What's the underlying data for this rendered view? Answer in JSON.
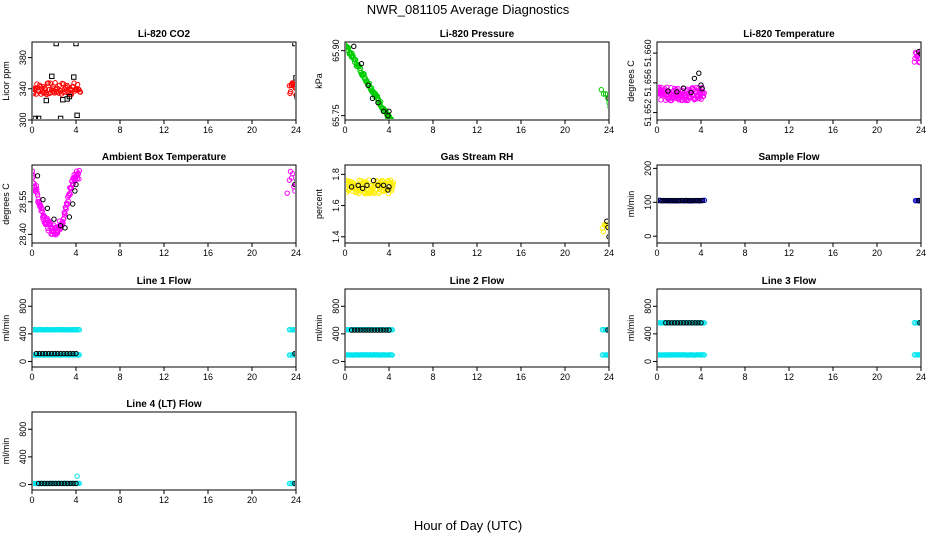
{
  "title": "NWR_081105  Average Diagnostics",
  "xlabel": "Hour of Day (UTC)",
  "colors": {
    "red": "#ff0000",
    "green": "#00cc00",
    "magenta": "#ff00ff",
    "yellow": "#ffee00",
    "blue": "#0000cc",
    "cyan": "#00e5ee",
    "black": "#000000"
  },
  "chart_data": [
    {
      "id": "co2",
      "type": "scatter",
      "title": "Li-820 CO2",
      "ylabel": "Licor ppm",
      "xlim": [
        0,
        24
      ],
      "xticks": [
        0,
        4,
        8,
        12,
        16,
        20,
        24
      ],
      "ylim": [
        300,
        400
      ],
      "yticks": [
        300,
        340,
        380
      ],
      "ytick_labels": [
        "300",
        "340",
        "380"
      ],
      "series": [
        {
          "name": "co2",
          "color": "red",
          "marker": "circle",
          "x_range": [
            0,
            4.4
          ],
          "y_base": 340,
          "jitter": 1,
          "n": 70,
          "x_range2": [
            23.4,
            24
          ],
          "n2": 12,
          "y_base2": 340
        },
        {
          "name": "co2-std",
          "color": "black",
          "marker": "square",
          "x": [
            0.6,
            1.3,
            1.8,
            2.2,
            2.8,
            3.4,
            3.8,
            4.0,
            4.1,
            2.6,
            3.2,
            0.3,
            23.9,
            24.0,
            24.1
          ],
          "y": [
            302,
            325,
            356,
            398,
            326,
            330,
            355,
            398,
            306,
            302,
            327,
            302,
            398,
            354,
            330
          ]
        }
      ]
    },
    {
      "id": "pressure",
      "type": "scatter",
      "title": "Li-820 Pressure",
      "ylabel": "kPa",
      "xlim": [
        0,
        24
      ],
      "xticks": [
        0,
        4,
        8,
        12,
        16,
        20,
        24
      ],
      "ylim": [
        65.74,
        65.92
      ],
      "yticks": [
        65.75,
        65.9
      ],
      "ytick_labels": [
        "65.75",
        "65.90"
      ],
      "series": [
        {
          "name": "pressure",
          "color": "green",
          "marker": "circle",
          "curve": "pressure",
          "n": 90
        },
        {
          "name": "pressure-black",
          "color": "black",
          "marker": "circle",
          "x": [
            0.8,
            1.5,
            2.1,
            2.5,
            3.0,
            3.5,
            3.9,
            4.0,
            23.7,
            24.0,
            24.1
          ],
          "y": [
            65.91,
            65.87,
            65.82,
            65.79,
            65.78,
            65.76,
            65.75,
            65.76,
            65.8,
            65.79,
            65.77
          ]
        },
        {
          "name": "pressure-late",
          "color": "green",
          "marker": "circle",
          "x": [
            23.3,
            23.5,
            23.7,
            23.9,
            24.0,
            24.1
          ],
          "y": [
            65.81,
            65.8,
            65.8,
            65.79,
            65.78,
            65.77
          ]
        }
      ]
    },
    {
      "id": "licor-temp",
      "type": "scatter",
      "title": "Li-820 Temperature",
      "ylabel": "degrees C",
      "xlim": [
        0,
        24
      ],
      "xticks": [
        0,
        4,
        8,
        12,
        16,
        20,
        24
      ],
      "ylim": [
        51.651,
        51.6615
      ],
      "yticks": [
        51.652,
        51.656,
        51.66
      ],
      "ytick_labels": [
        "51.652",
        "51.656",
        "51.660"
      ],
      "series": [
        {
          "name": "temp",
          "color": "magenta",
          "marker": "circle",
          "x_range": [
            0,
            4.3
          ],
          "y_base": 51.6545,
          "jitter": 1.1,
          "n": 110,
          "x_range2": [
            23.4,
            24.1
          ],
          "n2": 14,
          "y_base2": 51.6595
        },
        {
          "name": "temp-black",
          "color": "black",
          "marker": "circle",
          "x": [
            1.0,
            1.8,
            2.4,
            3.4,
            3.8,
            4.0,
            4.1,
            3.1,
            23.8,
            24.0
          ],
          "y": [
            51.6549,
            51.6548,
            51.6553,
            51.6566,
            51.6573,
            51.6557,
            51.6552,
            51.6547,
            51.6602,
            51.6599
          ]
        }
      ]
    },
    {
      "id": "box-temp",
      "type": "scatter",
      "title": "Ambient Box Temperature",
      "ylabel": "degrees C",
      "xlim": [
        0,
        24
      ],
      "xticks": [
        0,
        4,
        8,
        12,
        16,
        20,
        24
      ],
      "ylim": [
        28.36,
        28.72
      ],
      "yticks": [
        28.4,
        28.55
      ],
      "ytick_labels": [
        "28.40",
        "28.55"
      ],
      "series": [
        {
          "name": "box",
          "color": "magenta",
          "marker": "circle",
          "curve": "box",
          "n": 120
        },
        {
          "name": "box-late",
          "color": "magenta",
          "marker": "circle",
          "x": [
            23.2,
            23.4,
            23.5,
            23.6,
            23.8,
            24.0,
            23.9,
            23.7
          ],
          "y": [
            28.59,
            28.65,
            28.69,
            28.66,
            28.62,
            28.63,
            28.6,
            28.68
          ]
        },
        {
          "name": "box-black",
          "color": "black",
          "marker": "circle",
          "x": [
            0.5,
            1.0,
            1.4,
            2.0,
            2.6,
            3.0,
            3.4,
            3.7,
            3.9,
            4.0,
            23.9,
            24.1
          ],
          "y": [
            28.67,
            28.56,
            28.52,
            28.47,
            28.44,
            28.43,
            28.48,
            28.54,
            28.6,
            28.63,
            28.63,
            28.65
          ]
        }
      ]
    },
    {
      "id": "rh",
      "type": "scatter",
      "title": "Gas Stream RH",
      "ylabel": "percent",
      "xlim": [
        0,
        24
      ],
      "xticks": [
        0,
        4,
        8,
        12,
        16,
        20,
        24
      ],
      "ylim": [
        1.36,
        1.86
      ],
      "yticks": [
        1.4,
        1.6,
        1.8
      ],
      "ytick_labels": [
        "1.4",
        "1.6",
        "1.8"
      ],
      "series": [
        {
          "name": "rh",
          "color": "yellow",
          "marker": "circle",
          "x_range": [
            0,
            4.4
          ],
          "y_base": 1.72,
          "jitter": 1.1,
          "n": 100,
          "x_range2": [
            23.4,
            24
          ],
          "n2": 8,
          "y_base2": 1.45
        },
        {
          "name": "rh-black",
          "color": "black",
          "marker": "circle",
          "x": [
            0.6,
            1.2,
            1.6,
            2.0,
            2.6,
            3.0,
            3.5,
            3.9,
            4.0,
            23.8,
            23.9,
            24.0
          ],
          "y": [
            1.72,
            1.73,
            1.71,
            1.73,
            1.76,
            1.73,
            1.73,
            1.7,
            1.72,
            1.5,
            1.46,
            1.4
          ]
        }
      ]
    },
    {
      "id": "sample-flow",
      "type": "scatter",
      "title": "Sample Flow",
      "ylabel": "ml/min",
      "xlim": [
        0,
        24
      ],
      "xticks": [
        0,
        4,
        8,
        12,
        16,
        20,
        24
      ],
      "ylim": [
        -20,
        210
      ],
      "yticks": [
        0,
        100,
        200
      ],
      "ytick_labels": [
        "0",
        "100",
        "200"
      ],
      "series": [
        {
          "name": "sample",
          "color": "blue",
          "marker": "circle",
          "x_range": [
            0,
            4.3
          ],
          "y_base": 105,
          "jitter": 0.05,
          "n": 30,
          "x_range2": [
            23.5,
            24.1
          ],
          "n2": 6,
          "y_base2": 105
        },
        {
          "name": "sample-black",
          "color": "black",
          "marker": "circle",
          "x_range": [
            0.3,
            4.1
          ],
          "y_base": 105,
          "n": 16,
          "x_range2": [
            23.8,
            24.0
          ],
          "n2": 2,
          "y_base2": 105
        }
      ]
    },
    {
      "id": "line1",
      "type": "scatter",
      "title": "Line 1 Flow",
      "ylabel": "ml/min",
      "xlim": [
        0,
        24
      ],
      "xticks": [
        0,
        4,
        8,
        12,
        16,
        20,
        24
      ],
      "ylim": [
        -80,
        1050
      ],
      "yticks": [
        0,
        400,
        800
      ],
      "ytick_labels": [
        "0",
        "400",
        "800"
      ],
      "series": [
        {
          "name": "line1-high",
          "color": "cyan",
          "marker": "circle",
          "x_range": [
            0,
            4.3
          ],
          "y_base": 460,
          "jitter": 0.02,
          "n": 40,
          "x_range2": [
            23.4,
            24.1
          ],
          "n2": 6,
          "y_base2": 460
        },
        {
          "name": "line1-low",
          "color": "cyan",
          "marker": "circle",
          "x_range": [
            0,
            4.3
          ],
          "y_base": 95,
          "jitter": 0.02,
          "n": 40,
          "x_range2": [
            23.4,
            24.1
          ],
          "n2": 6,
          "y_base2": 95
        },
        {
          "name": "line1-black",
          "color": "black",
          "marker": "circle",
          "x_range": [
            0.4,
            4.0
          ],
          "y_base": 115,
          "n": 14,
          "x_range2": [
            23.9,
            24.1
          ],
          "n2": 2,
          "y_base2": 115
        }
      ]
    },
    {
      "id": "line2",
      "type": "scatter",
      "title": "Line 2 Flow",
      "ylabel": "ml/min",
      "xlim": [
        0,
        24
      ],
      "xticks": [
        0,
        4,
        8,
        12,
        16,
        20,
        24
      ],
      "ylim": [
        -80,
        1050
      ],
      "yticks": [
        0,
        400,
        800
      ],
      "ytick_labels": [
        "0",
        "400",
        "800"
      ],
      "series": [
        {
          "name": "line2-high",
          "color": "cyan",
          "marker": "circle",
          "x_range": [
            0,
            4.3
          ],
          "y_base": 460,
          "jitter": 0.02,
          "n": 40,
          "x_range2": [
            23.4,
            24.1
          ],
          "n2": 6,
          "y_base2": 460
        },
        {
          "name": "line2-low",
          "color": "cyan",
          "marker": "circle",
          "x_range": [
            0,
            4.3
          ],
          "y_base": 95,
          "jitter": 0.02,
          "n": 40,
          "x_range2": [
            23.4,
            24.1
          ],
          "n2": 6,
          "y_base2": 95
        },
        {
          "name": "line2-black",
          "color": "black",
          "marker": "circle",
          "x_range": [
            0.6,
            4.0
          ],
          "y_base": 455,
          "n": 14,
          "x_range2": [
            23.9,
            24.1
          ],
          "n2": 2,
          "y_base2": 455
        }
      ]
    },
    {
      "id": "line3",
      "type": "scatter",
      "title": "Line 3 Flow",
      "ylabel": "ml/min",
      "xlim": [
        0,
        24
      ],
      "xticks": [
        0,
        4,
        8,
        12,
        16,
        20,
        24
      ],
      "ylim": [
        -80,
        1050
      ],
      "yticks": [
        0,
        400,
        800
      ],
      "ytick_labels": [
        "0",
        "400",
        "800"
      ],
      "series": [
        {
          "name": "line3-high",
          "color": "cyan",
          "marker": "circle",
          "x_range": [
            0,
            4.3
          ],
          "y_base": 560,
          "jitter": 0.02,
          "n": 40,
          "x_range2": [
            23.4,
            24.1
          ],
          "n2": 6,
          "y_base2": 560
        },
        {
          "name": "line3-low",
          "color": "cyan",
          "marker": "circle",
          "x_range": [
            0,
            4.3
          ],
          "y_base": 95,
          "jitter": 0.02,
          "n": 40,
          "x_range2": [
            23.4,
            24.1
          ],
          "n2": 6,
          "y_base2": 95
        },
        {
          "name": "line3-black",
          "color": "black",
          "marker": "circle",
          "x_range": [
            0.8,
            4.0
          ],
          "y_base": 560,
          "n": 13,
          "x_range2": [
            23.9,
            24.1
          ],
          "n2": 2,
          "y_base2": 560
        }
      ]
    },
    {
      "id": "line4",
      "type": "scatter",
      "title": "Line 4 (LT) Flow",
      "ylabel": "ml/min",
      "xlim": [
        0,
        24
      ],
      "xticks": [
        0,
        4,
        8,
        12,
        16,
        20,
        24
      ],
      "ylim": [
        -80,
        1050
      ],
      "yticks": [
        0,
        400,
        800
      ],
      "ytick_labels": [
        "0",
        "400",
        "800"
      ],
      "series": [
        {
          "name": "line4",
          "color": "cyan",
          "marker": "circle",
          "x_range": [
            0,
            4.3
          ],
          "y_base": 15,
          "jitter": 0.02,
          "n": 40,
          "x_range2": [
            23.4,
            24.1
          ],
          "n2": 6,
          "y_base2": 15
        },
        {
          "name": "line4-spike",
          "color": "cyan",
          "marker": "circle",
          "x": [
            4.1
          ],
          "y": [
            120
          ]
        },
        {
          "name": "line4-black",
          "color": "black",
          "marker": "circle",
          "x_range": [
            0.6,
            4.0
          ],
          "y_base": 15,
          "n": 14,
          "x_range2": [
            23.9,
            24.1
          ],
          "n2": 2,
          "y_base2": 15
        }
      ]
    }
  ]
}
